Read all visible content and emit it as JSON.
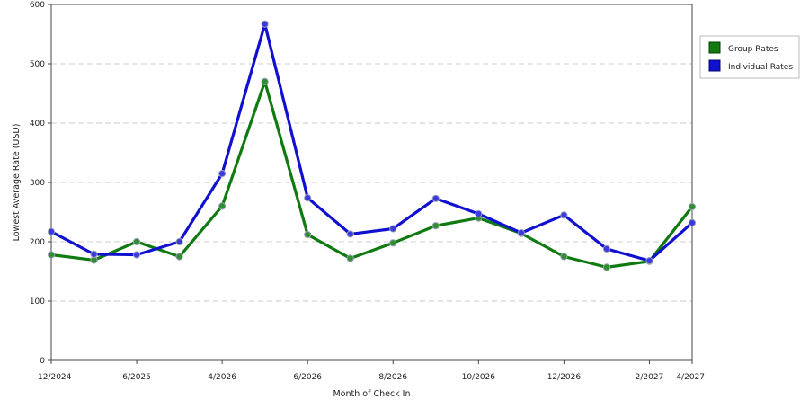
{
  "chart_data": {
    "type": "line",
    "title": "",
    "xlabel": "Month of Check In",
    "ylabel": "Lowest Average Rate (USD)",
    "ylim": [
      0,
      600
    ],
    "yticks": [
      0,
      100,
      200,
      300,
      400,
      500,
      600
    ],
    "x_tick_labels": [
      "12/2024",
      "6/2025",
      "4/2026",
      "6/2026",
      "8/2026",
      "10/2026",
      "12/2026",
      "2/2027",
      "4/2027"
    ],
    "x_tick_indices": [
      0,
      2,
      4,
      6,
      8,
      10,
      12,
      14,
      15
    ],
    "num_points": 16,
    "grid": "horizontal dashed",
    "legend_position": "right",
    "series": [
      {
        "name": "Group Rates",
        "color": "#0f7a0f",
        "values": [
          178,
          169,
          200,
          175,
          260,
          470,
          212,
          172,
          198,
          227,
          240,
          214,
          175,
          157,
          167,
          259
        ]
      },
      {
        "name": "Individual Rates",
        "color": "#1010d0",
        "values": [
          217,
          179,
          178,
          200,
          315,
          567,
          274,
          213,
          222,
          273,
          247,
          215,
          245,
          188,
          168,
          232
        ]
      }
    ]
  }
}
